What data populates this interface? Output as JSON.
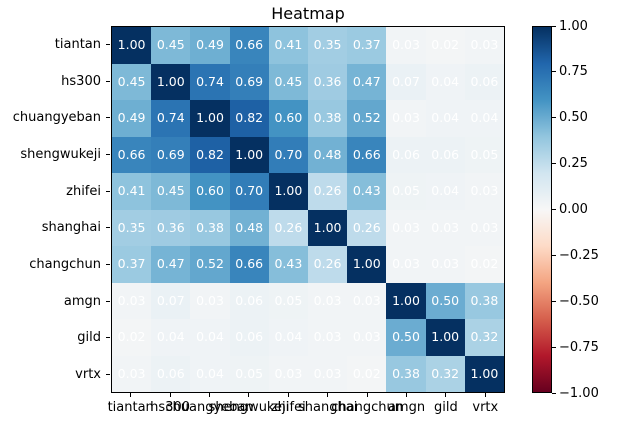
{
  "title": "Heatmap",
  "chart_data": {
    "type": "heatmap",
    "title": "Heatmap",
    "x_labels": [
      "tiantan",
      "hs300",
      "chuangyeban",
      "shengwukeji",
      "zhifei",
      "shanghai",
      "changchun",
      "amgn",
      "gild",
      "vrtx"
    ],
    "y_labels": [
      "tiantan",
      "hs300",
      "chuangyeban",
      "shengwukeji",
      "zhifei",
      "shanghai",
      "changchun",
      "amgn",
      "gild",
      "vrtx"
    ],
    "matrix": [
      [
        1.0,
        0.45,
        0.49,
        0.66,
        0.41,
        0.35,
        0.37,
        0.03,
        0.02,
        0.03
      ],
      [
        0.45,
        1.0,
        0.74,
        0.69,
        0.45,
        0.36,
        0.47,
        0.07,
        0.04,
        0.06
      ],
      [
        0.49,
        0.74,
        1.0,
        0.82,
        0.6,
        0.38,
        0.52,
        0.03,
        0.04,
        0.04
      ],
      [
        0.66,
        0.69,
        0.82,
        1.0,
        0.7,
        0.48,
        0.66,
        0.06,
        0.06,
        0.05
      ],
      [
        0.41,
        0.45,
        0.6,
        0.7,
        1.0,
        0.26,
        0.43,
        0.05,
        0.04,
        0.03
      ],
      [
        0.35,
        0.36,
        0.38,
        0.48,
        0.26,
        1.0,
        0.26,
        0.03,
        0.03,
        0.03
      ],
      [
        0.37,
        0.47,
        0.52,
        0.66,
        0.43,
        0.26,
        1.0,
        0.03,
        0.03,
        0.02
      ],
      [
        0.03,
        0.07,
        0.03,
        0.06,
        0.05,
        0.03,
        0.03,
        1.0,
        0.5,
        0.38
      ],
      [
        0.02,
        0.04,
        0.04,
        0.06,
        0.04,
        0.03,
        0.03,
        0.5,
        1.0,
        0.32
      ],
      [
        0.03,
        0.06,
        0.04,
        0.05,
        0.03,
        0.03,
        0.02,
        0.38,
        0.32,
        1.0
      ]
    ],
    "value_decimals": 2,
    "vmin": -1,
    "vmax": 1,
    "colormap": "RdBu",
    "colormap_anchors": [
      "#67001f",
      "#b2182b",
      "#d6604d",
      "#f4a582",
      "#fddbc7",
      "#f7f7f7",
      "#d1e5f0",
      "#92c5de",
      "#4393c3",
      "#2166ac",
      "#053061"
    ],
    "annotation_color": "#ffffff",
    "axis_color": "#000000",
    "colorbar_ticks": [
      1.0,
      0.75,
      0.5,
      0.25,
      0.0,
      -0.25,
      -0.5,
      -0.75,
      -1.0
    ],
    "colorbar_tick_labels": [
      "1.00",
      "0.75",
      "0.50",
      "0.25",
      "0.00",
      "−0.25",
      "−0.50",
      "−0.75",
      "−1.00"
    ],
    "legend_position": "right",
    "grid": false
  }
}
